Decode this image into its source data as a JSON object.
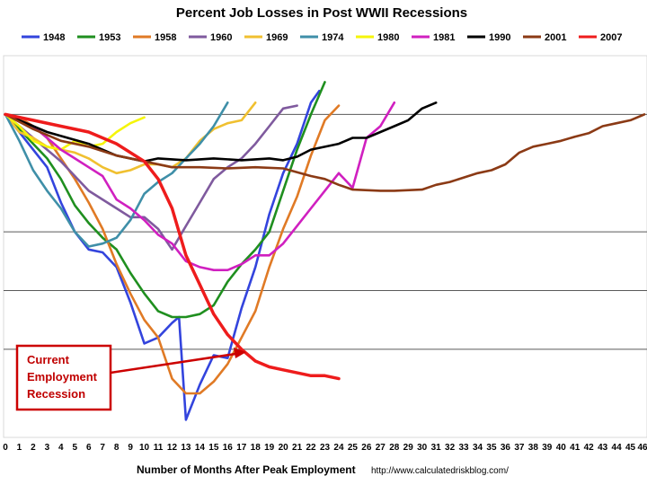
{
  "chart_data": {
    "type": "line",
    "title": "Percent Job Losses in Post WWII Recessions",
    "xlabel": "Number of Months After Peak Employment",
    "source_url": "http://www.calculatedriskblog.com/",
    "x_ticks": [
      "0",
      "1",
      "2",
      "3",
      "4",
      "5",
      "6",
      "7",
      "8",
      "9",
      "10",
      "11",
      "12",
      "13",
      "14",
      "15",
      "16",
      "17",
      "18",
      "19",
      "20",
      "21",
      "22",
      "23",
      "24",
      "25",
      "26",
      "27",
      "28",
      "29",
      "30",
      "31",
      "32",
      "33",
      "34",
      "35",
      "36",
      "37",
      "38",
      "39",
      "40",
      "41",
      "42",
      "43",
      "44",
      "45",
      "46"
    ],
    "xlim": [
      0,
      46
    ],
    "ylim": [
      -5.5,
      1.0
    ],
    "gridlines": [
      0,
      -2,
      -3,
      -4
    ],
    "annotation": {
      "lines": [
        "Current",
        "Employment",
        "Recession"
      ],
      "points_to_month": 17.3
    },
    "series": [
      {
        "name": "1948",
        "color": "#3344dd",
        "values": [
          [
            0,
            0
          ],
          [
            2,
            -0.6
          ],
          [
            3,
            -0.9
          ],
          [
            4,
            -1.5
          ],
          [
            5,
            -2.0
          ],
          [
            6,
            -2.3
          ],
          [
            7,
            -2.35
          ],
          [
            8,
            -2.6
          ],
          [
            9,
            -3.2
          ],
          [
            10,
            -3.9
          ],
          [
            11,
            -3.8
          ],
          [
            12,
            -3.55
          ],
          [
            12.5,
            -3.45
          ],
          [
            13,
            -5.2
          ],
          [
            14,
            -4.6
          ],
          [
            15,
            -4.1
          ],
          [
            16,
            -4.15
          ],
          [
            17,
            -3.3
          ],
          [
            18,
            -2.6
          ],
          [
            19,
            -1.7
          ],
          [
            20,
            -1.0
          ],
          [
            21,
            -0.5
          ],
          [
            22,
            0.2
          ],
          [
            22.6,
            0.4
          ]
        ]
      },
      {
        "name": "1953",
        "color": "#1f8f1f",
        "values": [
          [
            0,
            0
          ],
          [
            1,
            -0.25
          ],
          [
            2,
            -0.5
          ],
          [
            3,
            -0.75
          ],
          [
            4,
            -1.1
          ],
          [
            5,
            -1.55
          ],
          [
            6,
            -1.85
          ],
          [
            7,
            -2.1
          ],
          [
            8,
            -2.3
          ],
          [
            9,
            -2.7
          ],
          [
            10,
            -3.05
          ],
          [
            11,
            -3.35
          ],
          [
            12,
            -3.45
          ],
          [
            13,
            -3.45
          ],
          [
            14,
            -3.4
          ],
          [
            15,
            -3.25
          ],
          [
            16,
            -2.85
          ],
          [
            17,
            -2.55
          ],
          [
            18,
            -2.3
          ],
          [
            19,
            -2.0
          ],
          [
            20,
            -1.3
          ],
          [
            21,
            -0.6
          ],
          [
            22,
            0.0
          ],
          [
            23,
            0.55
          ]
        ]
      },
      {
        "name": "1958",
        "color": "#e07a25",
        "values": [
          [
            0,
            0
          ],
          [
            1,
            -0.05
          ],
          [
            2,
            -0.2
          ],
          [
            3,
            -0.4
          ],
          [
            4,
            -0.75
          ],
          [
            5,
            -1.1
          ],
          [
            6,
            -1.5
          ],
          [
            7,
            -1.95
          ],
          [
            8,
            -2.55
          ],
          [
            9,
            -3.05
          ],
          [
            10,
            -3.5
          ],
          [
            11,
            -3.8
          ],
          [
            12,
            -4.5
          ],
          [
            13,
            -4.75
          ],
          [
            14,
            -4.75
          ],
          [
            15,
            -4.55
          ],
          [
            16,
            -4.25
          ],
          [
            17,
            -3.8
          ],
          [
            18,
            -3.35
          ],
          [
            19,
            -2.6
          ],
          [
            20,
            -1.95
          ],
          [
            21,
            -1.4
          ],
          [
            22,
            -0.7
          ],
          [
            23,
            -0.1
          ],
          [
            24,
            0.15
          ]
        ]
      },
      {
        "name": "1960",
        "color": "#7f5a9e",
        "values": [
          [
            0,
            0
          ],
          [
            2,
            -0.4
          ],
          [
            4,
            -0.8
          ],
          [
            6,
            -1.3
          ],
          [
            8,
            -1.6
          ],
          [
            9,
            -1.75
          ],
          [
            10,
            -1.75
          ],
          [
            11,
            -1.95
          ],
          [
            12,
            -2.3
          ],
          [
            13,
            -1.9
          ],
          [
            14,
            -1.5
          ],
          [
            15,
            -1.1
          ],
          [
            16,
            -0.9
          ],
          [
            17,
            -0.75
          ],
          [
            18,
            -0.5
          ],
          [
            19,
            -0.2
          ],
          [
            20,
            0.1
          ],
          [
            21,
            0.15
          ]
        ]
      },
      {
        "name": "1969",
        "color": "#f0c030",
        "values": [
          [
            0,
            0
          ],
          [
            1,
            -0.3
          ],
          [
            2,
            -0.4
          ],
          [
            3,
            -0.55
          ],
          [
            4,
            -0.6
          ],
          [
            5,
            -0.65
          ],
          [
            6,
            -0.75
          ],
          [
            7,
            -0.9
          ],
          [
            8,
            -1.0
          ],
          [
            9,
            -0.95
          ],
          [
            10,
            -0.85
          ],
          [
            11,
            -0.85
          ],
          [
            12,
            -0.9
          ],
          [
            13,
            -0.75
          ],
          [
            14,
            -0.45
          ],
          [
            15,
            -0.25
          ],
          [
            16,
            -0.15
          ],
          [
            17,
            -0.1
          ],
          [
            18,
            0.2
          ]
        ]
      },
      {
        "name": "1974",
        "color": "#3f8fa8",
        "values": [
          [
            0,
            0
          ],
          [
            1,
            -0.45
          ],
          [
            2,
            -0.95
          ],
          [
            3,
            -1.3
          ],
          [
            4,
            -1.6
          ],
          [
            5,
            -2.0
          ],
          [
            6,
            -2.25
          ],
          [
            7,
            -2.2
          ],
          [
            8,
            -2.1
          ],
          [
            9,
            -1.8
          ],
          [
            10,
            -1.35
          ],
          [
            11,
            -1.15
          ],
          [
            12,
            -1.0
          ],
          [
            13,
            -0.75
          ],
          [
            14,
            -0.5
          ],
          [
            15,
            -0.2
          ],
          [
            16,
            0.2
          ]
        ]
      },
      {
        "name": "1980",
        "color": "#f5f50a",
        "values": [
          [
            0,
            0
          ],
          [
            1,
            -0.2
          ],
          [
            2,
            -0.45
          ],
          [
            3,
            -0.55
          ],
          [
            4,
            -0.6
          ],
          [
            5,
            -0.45
          ],
          [
            6,
            -0.55
          ],
          [
            7,
            -0.5
          ],
          [
            8,
            -0.3
          ],
          [
            9,
            -0.15
          ],
          [
            10,
            -0.05
          ]
        ]
      },
      {
        "name": "1981",
        "color": "#d020c0",
        "values": [
          [
            0,
            0
          ],
          [
            2,
            -0.2
          ],
          [
            3,
            -0.4
          ],
          [
            4,
            -0.6
          ],
          [
            5,
            -0.75
          ],
          [
            6,
            -0.9
          ],
          [
            7,
            -1.05
          ],
          [
            8,
            -1.45
          ],
          [
            9,
            -1.6
          ],
          [
            10,
            -1.8
          ],
          [
            11,
            -2.05
          ],
          [
            12,
            -2.2
          ],
          [
            13,
            -2.5
          ],
          [
            14,
            -2.6
          ],
          [
            15,
            -2.65
          ],
          [
            16,
            -2.65
          ],
          [
            17,
            -2.55
          ],
          [
            18,
            -2.4
          ],
          [
            19,
            -2.4
          ],
          [
            20,
            -2.2
          ],
          [
            21,
            -1.9
          ],
          [
            22,
            -1.6
          ],
          [
            23,
            -1.3
          ],
          [
            24,
            -1.0
          ],
          [
            25,
            -1.25
          ],
          [
            26,
            -0.4
          ],
          [
            27,
            -0.2
          ],
          [
            28,
            0.2
          ]
        ]
      },
      {
        "name": "1990",
        "color": "#000000",
        "values": [
          [
            0,
            0
          ],
          [
            3,
            -0.3
          ],
          [
            6,
            -0.5
          ],
          [
            8,
            -0.7
          ],
          [
            10,
            -0.8
          ],
          [
            11,
            -0.75
          ],
          [
            13,
            -0.78
          ],
          [
            15,
            -0.75
          ],
          [
            17,
            -0.78
          ],
          [
            19,
            -0.75
          ],
          [
            20,
            -0.78
          ],
          [
            21,
            -0.72
          ],
          [
            22,
            -0.6
          ],
          [
            24,
            -0.5
          ],
          [
            25,
            -0.4
          ],
          [
            26,
            -0.4
          ],
          [
            28,
            -0.2
          ],
          [
            29,
            -0.1
          ],
          [
            30,
            0.1
          ],
          [
            31,
            0.2
          ]
        ]
      },
      {
        "name": "2001",
        "color": "#8b3a15",
        "values": [
          [
            0,
            0
          ],
          [
            2,
            -0.25
          ],
          [
            4,
            -0.45
          ],
          [
            6,
            -0.55
          ],
          [
            8,
            -0.7
          ],
          [
            10,
            -0.8
          ],
          [
            12,
            -0.9
          ],
          [
            14,
            -0.9
          ],
          [
            16,
            -0.92
          ],
          [
            18,
            -0.9
          ],
          [
            20,
            -0.92
          ],
          [
            22,
            -1.05
          ],
          [
            23,
            -1.1
          ],
          [
            24,
            -1.2
          ],
          [
            25,
            -1.28
          ],
          [
            27,
            -1.3
          ],
          [
            28,
            -1.3
          ],
          [
            30,
            -1.28
          ],
          [
            31,
            -1.2
          ],
          [
            32,
            -1.15
          ],
          [
            34,
            -1.0
          ],
          [
            35,
            -0.95
          ],
          [
            36,
            -0.85
          ],
          [
            37,
            -0.65
          ],
          [
            38,
            -0.55
          ],
          [
            39,
            -0.5
          ],
          [
            40,
            -0.45
          ],
          [
            41,
            -0.38
          ],
          [
            42,
            -0.32
          ],
          [
            43,
            -0.2
          ],
          [
            44,
            -0.15
          ],
          [
            45,
            -0.1
          ],
          [
            46,
            0
          ]
        ]
      },
      {
        "name": "2007",
        "color": "#ee1c1c",
        "values": [
          [
            0,
            0
          ],
          [
            2,
            -0.1
          ],
          [
            4,
            -0.2
          ],
          [
            6,
            -0.3
          ],
          [
            8,
            -0.5
          ],
          [
            10,
            -0.8
          ],
          [
            11,
            -1.1
          ],
          [
            12,
            -1.6
          ],
          [
            13,
            -2.4
          ],
          [
            14,
            -2.9
          ],
          [
            15,
            -3.4
          ],
          [
            16,
            -3.75
          ],
          [
            17,
            -4.0
          ],
          [
            18,
            -4.2
          ],
          [
            19,
            -4.3
          ],
          [
            20,
            -4.35
          ],
          [
            21,
            -4.4
          ],
          [
            22,
            -4.45
          ],
          [
            23,
            -4.45
          ],
          [
            24,
            -4.5
          ]
        ]
      }
    ]
  },
  "colors": {
    "grid": "#5a5a5a",
    "annotation": "#cc0000",
    "frame": "#d8d8d8"
  }
}
